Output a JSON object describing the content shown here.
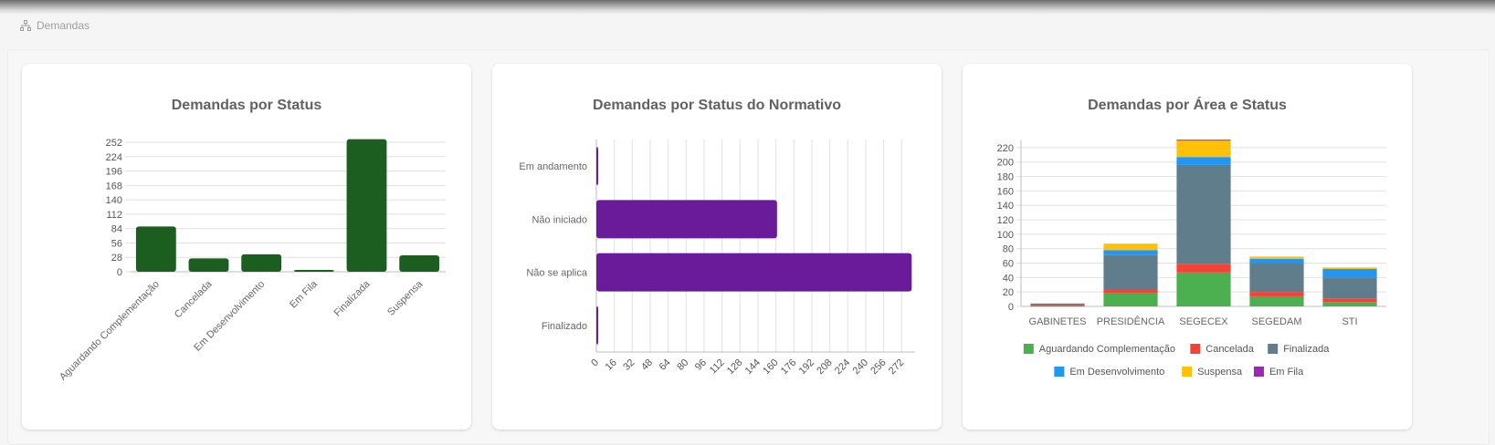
{
  "breadcrumb": {
    "label": "Demandas",
    "icon": "sitemap-icon"
  },
  "chart_data": [
    {
      "type": "bar",
      "title": "Demandas por Status",
      "categories": [
        "Aguardando Complementação",
        "Cancelada",
        "Em Desenvolvimento",
        "Em Fila",
        "Finalizada",
        "Suspensa"
      ],
      "values": [
        88,
        26,
        34,
        1,
        258,
        32
      ],
      "yticks": [
        0,
        28,
        56,
        84,
        112,
        140,
        168,
        196,
        224,
        252
      ],
      "ylim": [
        0,
        252
      ],
      "color": "#1b5e20",
      "grid": true
    },
    {
      "type": "bar",
      "orientation": "horizontal",
      "title": "Demandas por Status do Normativo",
      "categories": [
        "Em andamento",
        "Não iniciado",
        "Não se aplica",
        "Finalizado"
      ],
      "values": [
        1,
        161,
        281,
        1
      ],
      "xticks": [
        0,
        16,
        32,
        48,
        64,
        80,
        96,
        112,
        128,
        144,
        160,
        176,
        192,
        208,
        224,
        240,
        256,
        272
      ],
      "xlim": [
        0,
        284
      ],
      "color": "#6a1b9a",
      "grid": true
    },
    {
      "type": "bar",
      "stacked": true,
      "title": "Demandas por Área e Status",
      "categories": [
        "GABINETES",
        "PRESIDÊNCIA",
        "SEGECEX",
        "SEGEDAM",
        "STI"
      ],
      "yticks": [
        0,
        20,
        40,
        60,
        80,
        100,
        120,
        140,
        160,
        180,
        200,
        220
      ],
      "ylim": [
        0,
        230
      ],
      "legend_position": "bottom",
      "series": [
        {
          "name": "Aguardando Complementação",
          "color": "#4caf50",
          "values": [
            1,
            18,
            47,
            14,
            6
          ]
        },
        {
          "name": "Cancelada",
          "color": "#f44336",
          "values": [
            1,
            6,
            12,
            6,
            5
          ]
        },
        {
          "name": "Finalizada",
          "color": "#607d8b",
          "values": [
            2,
            47,
            137,
            40,
            29
          ]
        },
        {
          "name": "Em Desenvolvimento",
          "color": "#2196f3",
          "values": [
            0,
            7,
            11,
            6,
            12
          ]
        },
        {
          "name": "Suspensa",
          "color": "#ffc107",
          "values": [
            0,
            9,
            23,
            3,
            2
          ]
        },
        {
          "name": "Em Fila",
          "color": "#9c27b0",
          "values": [
            0,
            0,
            1,
            0,
            0
          ]
        }
      ]
    }
  ]
}
